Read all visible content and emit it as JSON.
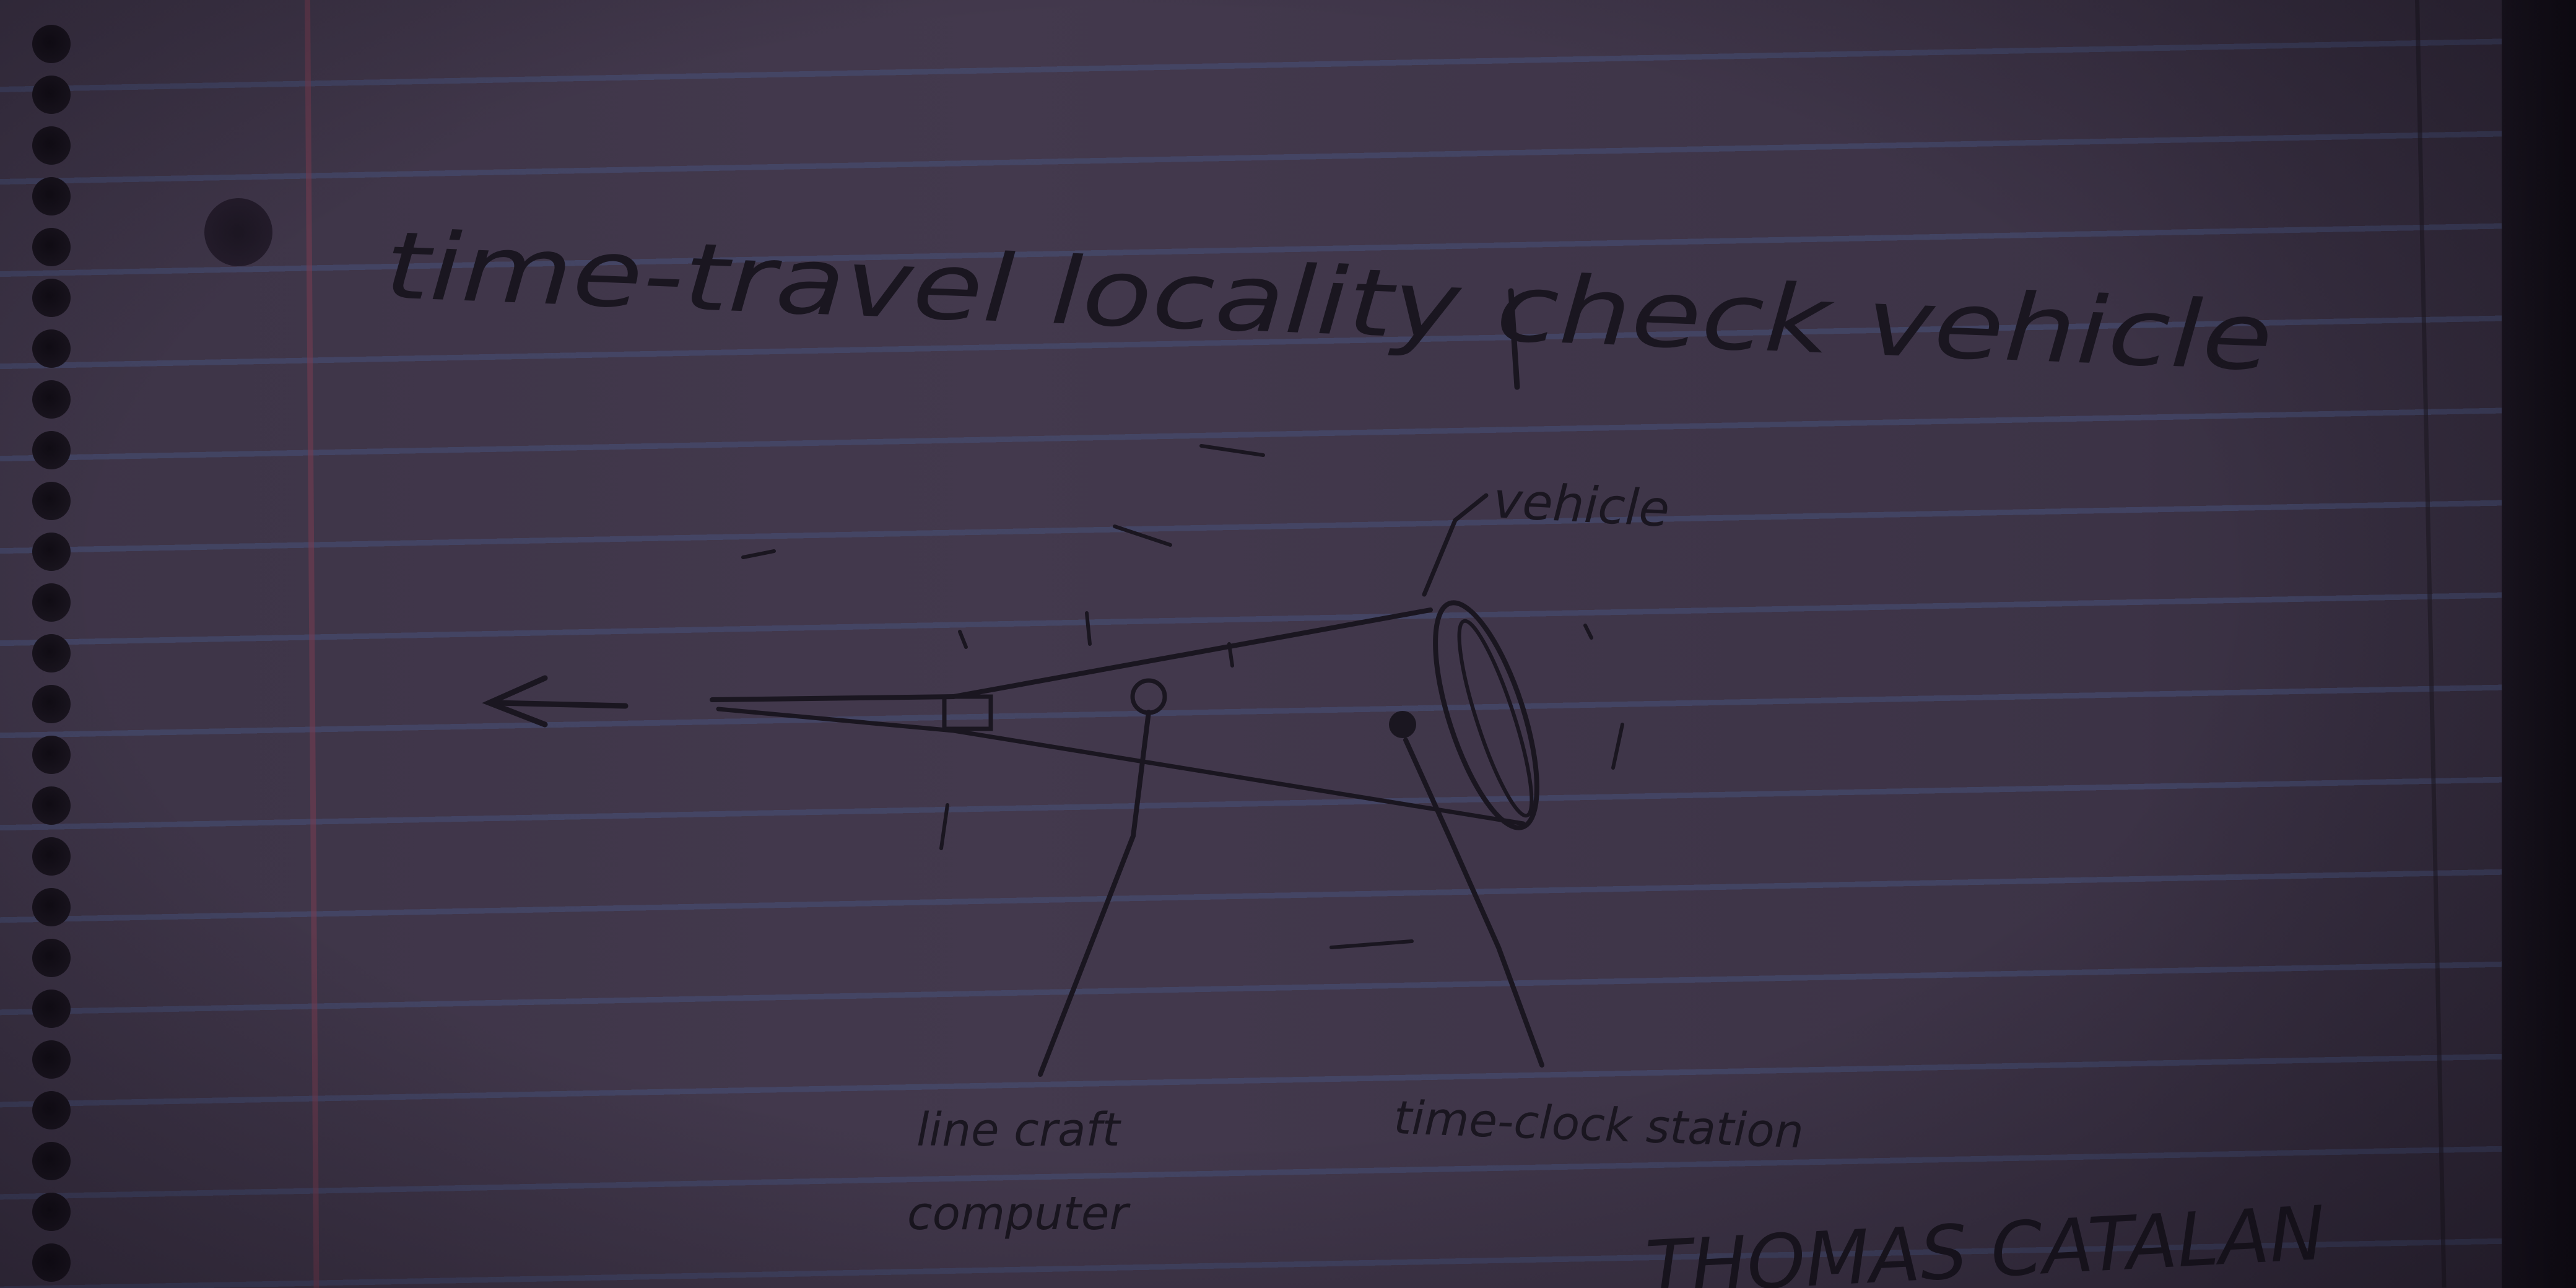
{
  "notebook": {
    "title": "time-travel locality check vehicle",
    "labels": {
      "vehicle": "vehicle",
      "left_line1": "line craft",
      "left_line2": "computer",
      "right": "time-clock station",
      "signature": "THOMAS CATALAN"
    }
  },
  "colors": {
    "paper": "#40374a",
    "ink": "#1a1620",
    "rule_lines": "#46507a",
    "margin_line": "#783c50"
  }
}
